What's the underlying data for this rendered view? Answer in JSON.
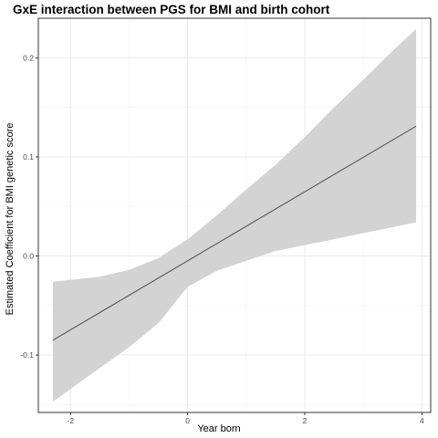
{
  "chart_data": {
    "type": "line",
    "title": "GxE interaction between PGS for BMI and birth cohort",
    "xlabel": "Year born",
    "ylabel": "Estimated Coefficient for BMI genetic score",
    "xlim": [
      -2.55,
      4.15
    ],
    "ylim": [
      -0.158,
      0.24
    ],
    "x_ticks": [
      -2,
      0,
      2,
      4
    ],
    "y_ticks": [
      -0.1,
      0.0,
      0.1,
      0.2
    ],
    "x_tick_labels": [
      "-2",
      "0",
      "2",
      "4"
    ],
    "y_tick_labels": [
      "-0.1",
      "0.0",
      "0.1",
      "0.2"
    ],
    "grid": true,
    "legend": "none",
    "colors": {
      "line": "#555555",
      "ribbon": "#d3d3d3",
      "grid": "#ebebeb",
      "border": "#333333"
    },
    "series": [
      {
        "x": [
          -2.3,
          3.9
        ],
        "y": [
          -0.085,
          0.131
        ]
      }
    ],
    "ribbon": {
      "x": [
        -2.3,
        -1.5,
        -1.0,
        -0.5,
        0.0,
        0.5,
        1.0,
        1.5,
        2.0,
        2.5,
        3.0,
        3.5,
        3.9
      ],
      "upper": [
        -0.026,
        -0.021,
        -0.014,
        -0.002,
        0.017,
        0.041,
        0.067,
        0.092,
        0.12,
        0.15,
        0.178,
        0.207,
        0.229
      ],
      "lower": [
        -0.147,
        -0.113,
        -0.092,
        -0.068,
        -0.031,
        -0.015,
        -0.005,
        0.005,
        0.011,
        0.017,
        0.023,
        0.029,
        0.034
      ]
    }
  }
}
